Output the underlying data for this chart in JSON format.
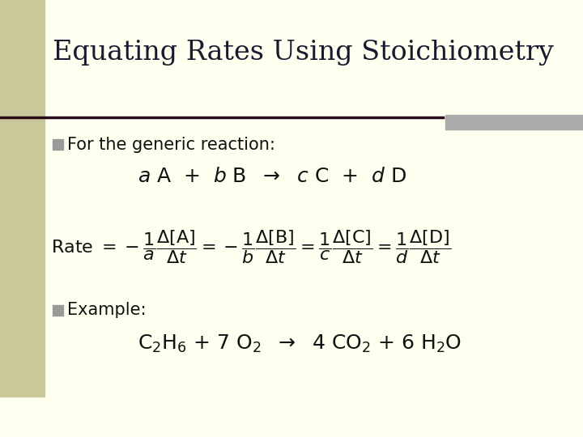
{
  "title": "Equating Rates Using Stoichiometry",
  "background_color": "#FFFFF0",
  "left_bar_color": "#C8C89A",
  "title_color": "#1a1a2e",
  "text_color": "#111111",
  "bullet_color": "#9A9A9A",
  "line_color": "#2a0a1a",
  "right_band_color": "#AAAAAA",
  "title_fontsize": 24,
  "body_fontsize": 15,
  "eq_fontsize": 16
}
